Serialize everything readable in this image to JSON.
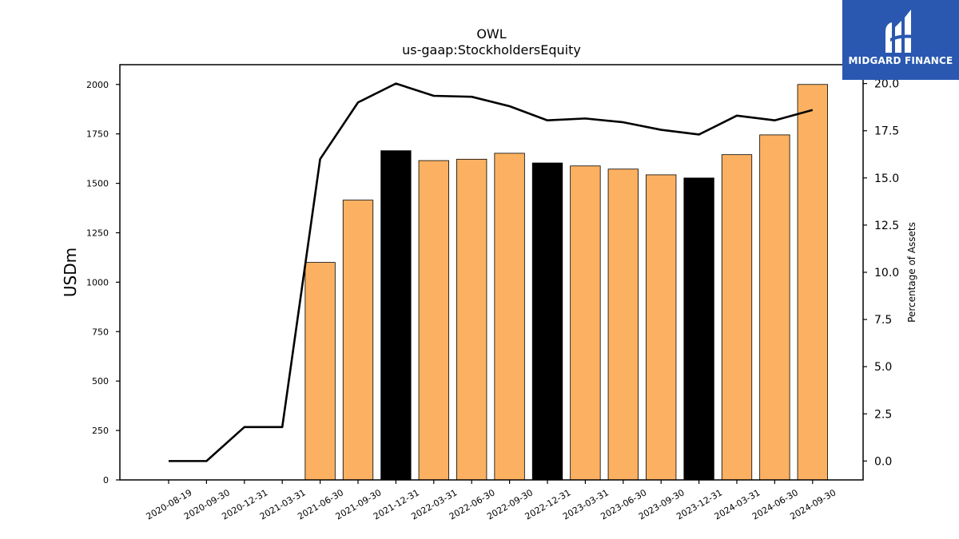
{
  "logo": {
    "text": "MIDGARD FINANCE",
    "background": "#2a58b0",
    "foreground": "#ffffff"
  },
  "chart_data": {
    "type": "bar",
    "title": "OWL",
    "subtitle": "us-gaap:StockholdersEquity",
    "ylabel": "USDm",
    "ylabel_right": "Percentage of Assets",
    "categories": [
      "2020-08-19",
      "2020-09-30",
      "2020-12-31",
      "2021-03-31",
      "2021-06-30",
      "2021-09-30",
      "2021-12-31",
      "2022-03-31",
      "2022-06-30",
      "2022-09-30",
      "2022-12-31",
      "2023-03-31",
      "2023-06-30",
      "2023-09-30",
      "2023-12-31",
      "2024-03-31",
      "2024-06-30",
      "2024-09-30"
    ],
    "series": [
      {
        "type": "bar",
        "axis": "left",
        "values": [
          null,
          null,
          null,
          null,
          1100,
          1415,
          1665,
          1615,
          1622,
          1652,
          1603,
          1588,
          1572,
          1543,
          1527,
          1645,
          1745,
          2000
        ],
        "colors": [
          "#fbb161",
          "#fbb161",
          "#fbb161",
          "#fbb161",
          "#fbb161",
          "#fbb161",
          "#000000",
          "#fbb161",
          "#fbb161",
          "#fbb161",
          "#000000",
          "#fbb161",
          "#fbb161",
          "#fbb161",
          "#000000",
          "#fbb161",
          "#fbb161",
          "#fbb161"
        ]
      },
      {
        "type": "line",
        "axis": "right",
        "color": "#000000",
        "values": [
          0.0,
          0.0,
          1.8,
          1.8,
          16.0,
          19.0,
          20.0,
          19.35,
          19.3,
          18.8,
          18.05,
          18.15,
          17.95,
          17.55,
          17.3,
          18.3,
          18.05,
          18.6
        ]
      }
    ],
    "ylim": [
      0,
      2100
    ],
    "yticks": [
      0,
      250,
      500,
      750,
      1000,
      1250,
      1500,
      1750,
      2000
    ],
    "ylim_right": [
      -1.0,
      21.0
    ],
    "yticks_right": [
      "0.0",
      "2.5",
      "5.0",
      "7.5",
      "10.0",
      "12.5",
      "15.0",
      "17.5",
      "20.0"
    ],
    "grid": false,
    "legend": "none"
  }
}
